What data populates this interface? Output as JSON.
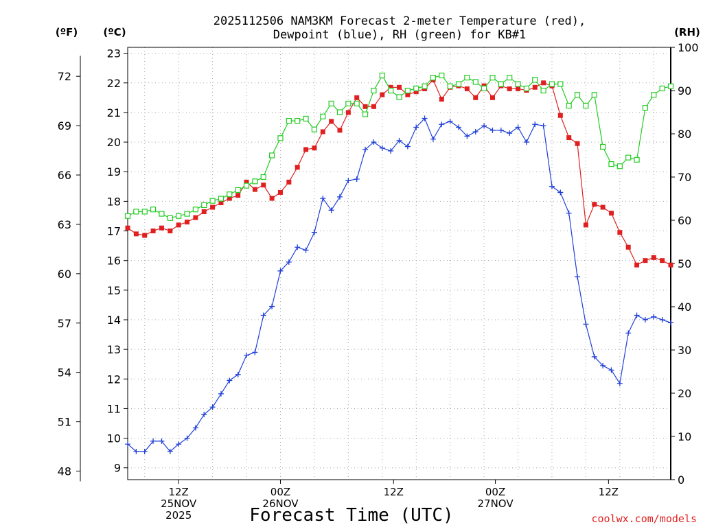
{
  "chart_data": {
    "type": "line",
    "title_line1": "2025112506 NAM3KM Forecast 2-meter Temperature (red),",
    "title_line2": "Dewpoint (blue), RH (green) for KB#1",
    "xlabel": "Forecast Time (UTC)",
    "credit": "coolwx.com/models",
    "left_unit_f": "(ºF)",
    "left_unit_c": "(ºC)",
    "right_unit": "(RH)",
    "x_hour_range": [
      6,
      54
    ],
    "celsius_range": [
      8.6,
      23.2
    ],
    "rh_range": [
      0,
      100
    ],
    "celsius_ticks": [
      9,
      10,
      11,
      12,
      13,
      14,
      15,
      16,
      17,
      18,
      19,
      20,
      21,
      22,
      23
    ],
    "fahrenheit_ticks": [
      48,
      51,
      54,
      57,
      60,
      63,
      66,
      69,
      72
    ],
    "rh_ticks": [
      0,
      10,
      20,
      30,
      40,
      50,
      60,
      70,
      80,
      90,
      100
    ],
    "x_ticks": [
      {
        "hour": 10.5,
        "labels": [
          "12Z",
          "25NOV",
          "2025"
        ]
      },
      {
        "hour": 19.5,
        "labels": [
          "00Z",
          "26NOV"
        ]
      },
      {
        "hour": 29.5,
        "labels": [
          "12Z"
        ]
      },
      {
        "hour": 38.5,
        "labels": [
          "00Z",
          "27NOV"
        ]
      },
      {
        "hour": 48.5,
        "labels": [
          "12Z"
        ]
      }
    ],
    "series": [
      {
        "name": "Temperature (°C)",
        "axis": "celsius",
        "color": "#e02020",
        "marker": "filled-square",
        "x": [
          6,
          6.75,
          7.5,
          8.25,
          9,
          9.75,
          10.5,
          11.25,
          12,
          12.75,
          13.5,
          14.25,
          15,
          15.75,
          16.5,
          17.25,
          18,
          18.75,
          19.5,
          20.25,
          21,
          21.75,
          22.5,
          23.25,
          24,
          24.75,
          25.5,
          26.25,
          27,
          27.75,
          28.5,
          29.25,
          30,
          30.75,
          31.5,
          32.25,
          33,
          33.75,
          34.5,
          35.25,
          36,
          36.75,
          37.5,
          38.25,
          39,
          39.75,
          40.5,
          41.25,
          42,
          42.75,
          43.5,
          44.25,
          45,
          45.75,
          46.5,
          47.25,
          48,
          48.75,
          49.5,
          50.25,
          51,
          51.75,
          52.5,
          53.25,
          54
        ],
        "values": [
          17.1,
          16.9,
          16.85,
          17.0,
          17.1,
          17.0,
          17.2,
          17.3,
          17.45,
          17.65,
          17.8,
          17.95,
          18.1,
          18.2,
          18.65,
          18.4,
          18.55,
          18.1,
          18.3,
          18.65,
          19.15,
          19.75,
          19.8,
          20.35,
          20.7,
          20.4,
          21.0,
          21.5,
          21.2,
          21.2,
          21.6,
          21.85,
          21.85,
          21.6,
          21.7,
          21.8,
          22.1,
          21.45,
          21.85,
          21.9,
          21.8,
          21.5,
          21.9,
          21.5,
          21.9,
          21.8,
          21.8,
          21.75,
          21.85,
          22.0,
          21.9,
          20.9,
          20.15,
          19.95,
          17.2,
          17.9,
          17.8,
          17.6,
          16.95,
          16.45,
          15.85,
          16.0,
          16.1,
          16.0,
          15.85
        ]
      },
      {
        "name": "Dewpoint (°C)",
        "axis": "celsius",
        "color": "#1f3fd8",
        "marker": "plus",
        "x": [
          6,
          6.75,
          7.5,
          8.25,
          9,
          9.75,
          10.5,
          11.25,
          12,
          12.75,
          13.5,
          14.25,
          15,
          15.75,
          16.5,
          17.25,
          18,
          18.75,
          19.5,
          20.25,
          21,
          21.75,
          22.5,
          23.25,
          24,
          24.75,
          25.5,
          26.25,
          27,
          27.75,
          28.5,
          29.25,
          30,
          30.75,
          31.5,
          32.25,
          33,
          33.75,
          34.5,
          35.25,
          36,
          36.75,
          37.5,
          38.25,
          39,
          39.75,
          40.5,
          41.25,
          42,
          42.75,
          43.5,
          44.25,
          45,
          45.75,
          46.5,
          47.25,
          48,
          48.75,
          49.5,
          50.25,
          51,
          51.75,
          52.5,
          53.25,
          54
        ],
        "values": [
          9.8,
          9.55,
          9.55,
          9.9,
          9.9,
          9.55,
          9.8,
          10.0,
          10.35,
          10.8,
          11.05,
          11.5,
          11.95,
          12.15,
          12.8,
          12.9,
          14.15,
          14.45,
          15.65,
          15.95,
          16.45,
          16.35,
          16.95,
          18.1,
          17.7,
          18.15,
          18.7,
          18.75,
          19.75,
          20.0,
          19.8,
          19.7,
          20.05,
          19.85,
          20.5,
          20.8,
          20.1,
          20.6,
          20.7,
          20.5,
          20.2,
          20.35,
          20.55,
          20.4,
          20.4,
          20.3,
          20.5,
          20.0,
          20.6,
          20.55,
          18.5,
          18.3,
          17.6,
          15.45,
          13.85,
          12.75,
          12.45,
          12.3,
          11.85,
          13.55,
          14.15,
          14.0,
          14.1,
          14.0,
          13.9
        ]
      },
      {
        "name": "Relative Humidity (%)",
        "axis": "rh",
        "color": "#22cc22",
        "marker": "open-square",
        "x": [
          6,
          6.75,
          7.5,
          8.25,
          9,
          9.75,
          10.5,
          11.25,
          12,
          12.75,
          13.5,
          14.25,
          15,
          15.75,
          16.5,
          17.25,
          18,
          18.75,
          19.5,
          20.25,
          21,
          21.75,
          22.5,
          23.25,
          24,
          24.75,
          25.5,
          26.25,
          27,
          27.75,
          28.5,
          29.25,
          30,
          30.75,
          31.5,
          32.25,
          33,
          33.75,
          34.5,
          35.25,
          36,
          36.75,
          37.5,
          38.25,
          39,
          39.75,
          40.5,
          41.25,
          42,
          42.75,
          43.5,
          44.25,
          45,
          45.75,
          46.5,
          47.25,
          48,
          48.75,
          49.5,
          50.25,
          51,
          51.75,
          52.5,
          53.25,
          54
        ],
        "values": [
          61,
          62,
          62,
          62.5,
          61.5,
          60.5,
          61,
          61.5,
          62.5,
          63.5,
          64.5,
          65,
          66,
          67,
          68,
          69,
          70,
          75,
          79,
          83,
          83,
          83.5,
          81,
          84,
          87,
          85,
          87,
          87,
          84.5,
          90,
          93.5,
          90,
          88.5,
          90,
          90.5,
          91,
          93,
          93.5,
          91,
          91.5,
          93,
          92,
          90.5,
          93,
          91.5,
          93,
          91.5,
          90.5,
          92.5,
          90,
          91.5,
          91.5,
          86.5,
          89,
          86.5,
          89,
          77,
          73,
          72.5,
          74.5,
          74,
          86,
          89,
          90.5,
          91
        ]
      }
    ]
  }
}
